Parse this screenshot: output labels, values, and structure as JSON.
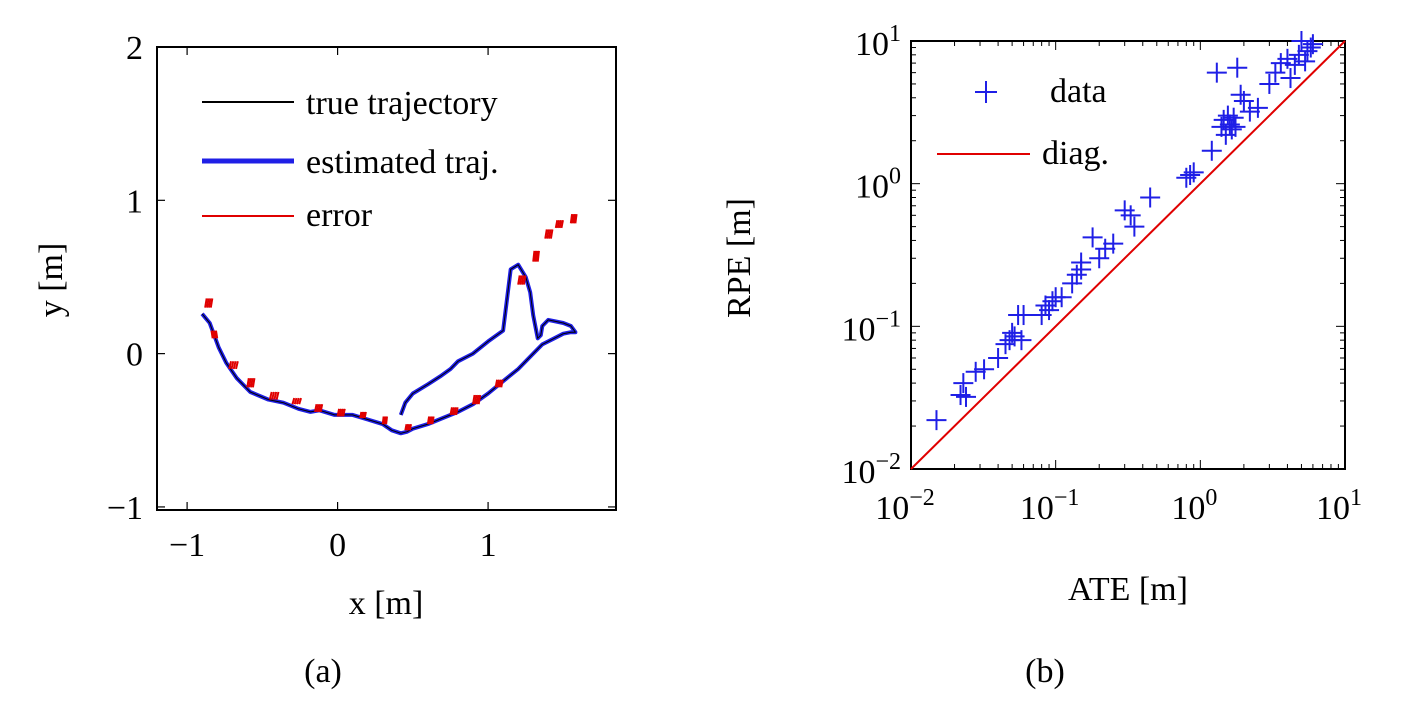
{
  "chart_data": [
    {
      "id": "a",
      "type": "line",
      "caption": "(a)",
      "xlabel": "x [m]",
      "ylabel": "y [m]",
      "xlim": [
        -1.2,
        1.85
      ],
      "ylim": [
        -1.02,
        2.0
      ],
      "xticks": [
        -1,
        0,
        1
      ],
      "yticks": [
        -1,
        0,
        1,
        2
      ],
      "xtick_labels": [
        "−1",
        "0",
        "1"
      ],
      "ytick_labels": [
        "−1",
        "0",
        "1",
        "2"
      ],
      "legend": {
        "placement": "top-right"
      },
      "series": [
        {
          "name": "true trajectory",
          "color": "#000000",
          "x": [
            -0.9,
            -0.85,
            -0.82,
            -0.79,
            -0.74,
            -0.67,
            -0.58,
            -0.46,
            -0.36,
            -0.26,
            -0.18,
            -0.12,
            -0.02,
            0.1,
            0.2,
            0.3,
            0.36,
            0.42,
            0.46,
            0.5,
            0.6,
            0.7,
            0.8,
            0.9,
            1.0,
            1.1,
            1.2,
            1.3,
            1.36,
            1.44,
            1.5,
            1.55,
            1.58,
            1.55,
            1.5,
            1.4,
            1.36,
            1.35,
            1.33,
            1.3,
            1.28,
            1.25,
            1.2,
            1.15,
            1.1,
            1.0,
            0.9,
            0.8,
            0.75,
            0.68,
            0.6,
            0.5,
            0.45,
            0.42
          ],
          "y": [
            0.26,
            0.2,
            0.12,
            0.04,
            -0.06,
            -0.16,
            -0.25,
            -0.3,
            -0.32,
            -0.36,
            -0.38,
            -0.37,
            -0.4,
            -0.4,
            -0.43,
            -0.46,
            -0.5,
            -0.52,
            -0.51,
            -0.49,
            -0.46,
            -0.42,
            -0.38,
            -0.33,
            -0.26,
            -0.18,
            -0.1,
            0.0,
            0.06,
            0.1,
            0.13,
            0.14,
            0.14,
            0.18,
            0.2,
            0.22,
            0.18,
            0.12,
            0.1,
            0.25,
            0.4,
            0.5,
            0.58,
            0.55,
            0.15,
            0.08,
            0.0,
            -0.05,
            -0.1,
            -0.15,
            -0.2,
            -0.26,
            -0.32,
            -0.4
          ]
        },
        {
          "name": "estimated traj.",
          "color": "#1f1fe6",
          "x": [
            -0.9,
            -0.85,
            -0.82,
            -0.79,
            -0.74,
            -0.67,
            -0.58,
            -0.46,
            -0.36,
            -0.26,
            -0.18,
            -0.12,
            -0.02,
            0.1,
            0.2,
            0.3,
            0.36,
            0.42,
            0.46,
            0.5,
            0.6,
            0.7,
            0.8,
            0.9,
            1.0,
            1.1,
            1.2,
            1.3,
            1.36,
            1.44,
            1.5,
            1.55,
            1.58,
            1.55,
            1.5,
            1.4,
            1.36,
            1.35,
            1.33,
            1.3,
            1.28,
            1.25,
            1.2,
            1.15,
            1.1,
            1.0,
            0.9,
            0.8,
            0.75,
            0.68,
            0.6,
            0.5,
            0.45,
            0.42
          ],
          "y": [
            0.26,
            0.2,
            0.12,
            0.04,
            -0.06,
            -0.16,
            -0.25,
            -0.3,
            -0.32,
            -0.36,
            -0.38,
            -0.37,
            -0.4,
            -0.4,
            -0.43,
            -0.46,
            -0.5,
            -0.52,
            -0.51,
            -0.49,
            -0.46,
            -0.42,
            -0.38,
            -0.33,
            -0.26,
            -0.18,
            -0.1,
            0.0,
            0.06,
            0.1,
            0.13,
            0.14,
            0.14,
            0.18,
            0.2,
            0.22,
            0.18,
            0.12,
            0.1,
            0.25,
            0.4,
            0.5,
            0.58,
            0.55,
            0.15,
            0.08,
            0.0,
            -0.05,
            -0.1,
            -0.15,
            -0.2,
            -0.26,
            -0.32,
            -0.4
          ]
        },
        {
          "name": "error",
          "color": "#e00000",
          "type": "segments",
          "x": [
            -0.88,
            -0.8,
            -0.72,
            -0.6,
            -0.45,
            -0.3,
            -0.15,
            0.0,
            0.15,
            0.3,
            0.45,
            0.6,
            0.75,
            0.9,
            1.05,
            1.2,
            1.3,
            1.38,
            1.45,
            1.55
          ],
          "y": [
            0.3,
            0.1,
            -0.1,
            -0.22,
            -0.3,
            -0.33,
            -0.38,
            -0.41,
            -0.42,
            -0.46,
            -0.5,
            -0.46,
            -0.4,
            -0.33,
            -0.22,
            0.45,
            0.6,
            0.75,
            0.82,
            0.85
          ],
          "dx": [
            0.05,
            -0.04,
            0.06,
            0.05,
            0.06,
            0.06,
            0.05,
            0.05,
            0.04,
            0.03,
            0.04,
            0.04,
            0.05,
            0.05,
            0.05,
            0.05,
            0.04,
            0.05,
            0.05,
            0.04
          ],
          "dy": [
            0.06,
            0.05,
            0.05,
            0.06,
            0.05,
            0.04,
            0.05,
            0.05,
            0.04,
            0.05,
            0.04,
            0.05,
            0.05,
            0.06,
            0.05,
            0.06,
            0.07,
            0.06,
            0.05,
            0.06
          ]
        }
      ]
    },
    {
      "id": "b",
      "type": "scatter",
      "caption": "(b)",
      "xlabel": "ATE [m]",
      "ylabel": "RPE [m]",
      "xscale": "log",
      "yscale": "log",
      "xlim": [
        0.01,
        10
      ],
      "ylim": [
        0.01,
        10
      ],
      "xticks": [
        0.01,
        0.1,
        1,
        10
      ],
      "yticks": [
        0.01,
        0.1,
        1,
        10
      ],
      "tick_base": "10",
      "tick_exponents": [
        "−2",
        "−1",
        "0",
        "1"
      ],
      "legend": {
        "placement": "top-left"
      },
      "series": [
        {
          "name": "data",
          "marker": "+",
          "color": "#1f1fe6",
          "x": [
            0.015,
            0.022,
            0.023,
            0.024,
            0.028,
            0.032,
            0.04,
            0.045,
            0.048,
            0.05,
            0.052,
            0.055,
            0.058,
            0.06,
            0.08,
            0.085,
            0.09,
            0.095,
            0.1,
            0.11,
            0.13,
            0.14,
            0.15,
            0.15,
            0.18,
            0.2,
            0.22,
            0.25,
            0.3,
            0.33,
            0.35,
            0.45,
            0.8,
            0.85,
            0.9,
            1.2,
            1.3,
            1.4,
            1.45,
            1.5,
            1.55,
            1.6,
            1.65,
            1.7,
            1.75,
            1.8,
            1.9,
            2.0,
            2.2,
            2.5,
            3.0,
            3.3,
            3.6,
            4.0,
            4.2,
            4.5,
            4.8,
            5.0,
            5.3,
            5.5,
            5.8,
            6.0
          ],
          "y": [
            0.022,
            0.033,
            0.04,
            0.032,
            0.048,
            0.05,
            0.06,
            0.075,
            0.08,
            0.09,
            0.085,
            0.12,
            0.08,
            0.12,
            0.12,
            0.14,
            0.13,
            0.15,
            0.16,
            0.16,
            0.2,
            0.23,
            0.25,
            0.28,
            0.42,
            0.3,
            0.35,
            0.38,
            0.65,
            0.6,
            0.5,
            0.8,
            1.1,
            1.15,
            1.2,
            1.7,
            6.0,
            2.5,
            2.8,
            2.2,
            3.0,
            2.6,
            2.4,
            2.9,
            2.5,
            6.5,
            4.2,
            3.8,
            3.2,
            3.4,
            5.0,
            6.0,
            7.0,
            7.5,
            5.5,
            6.8,
            8.0,
            10.0,
            7.2,
            8.5,
            9.0,
            9.5
          ]
        },
        {
          "name": "diag.",
          "color": "#e00000",
          "x": [
            0.01,
            10
          ],
          "y": [
            0.01,
            10
          ]
        }
      ]
    }
  ]
}
